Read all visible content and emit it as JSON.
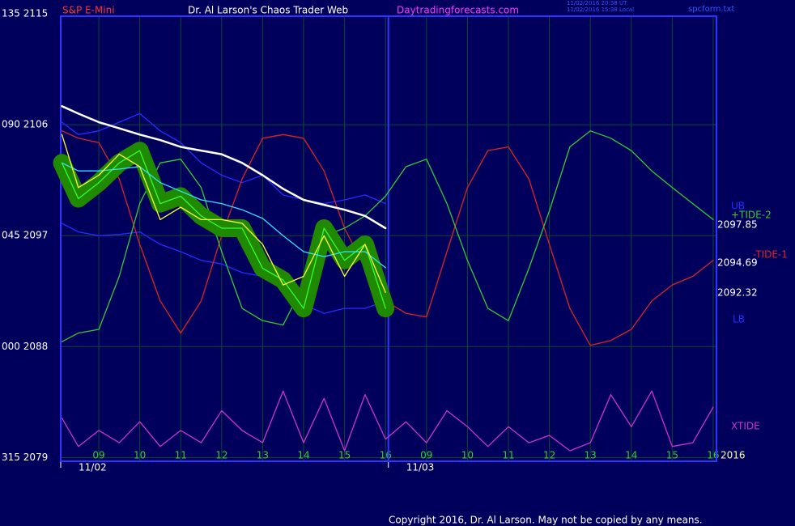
{
  "instrument": "S&P E-Mini",
  "title": "Dr. Al Larson's Chaos Trader Web",
  "website": "Daytradingforecasts.com",
  "timestamps": [
    "11/02/2016 20:38 UT",
    "11/02/2016 15:38 Local"
  ],
  "filename": "spcform.txt",
  "copyright": "Copyright 2016, Dr. Al Larson. May not be copied by any means.",
  "chart_data": {
    "type": "line",
    "grid": true,
    "x": [
      -0.9,
      -0.5,
      0,
      0.5,
      1,
      1.5,
      2,
      2.5,
      3,
      3.5,
      4,
      4.5,
      5,
      5.5,
      6,
      6.5,
      7,
      7.5,
      8,
      8.5,
      9,
      9.5,
      10,
      10.5,
      11,
      11.5,
      12,
      12.5,
      13,
      13.5,
      14,
      14.5,
      15
    ],
    "xlim": [
      -0.93,
      15.08
    ],
    "xticks": [
      {
        "value": 0,
        "label": "09"
      },
      {
        "value": 1,
        "label": "10"
      },
      {
        "value": 2,
        "label": "11"
      },
      {
        "value": 3,
        "label": "12"
      },
      {
        "value": 4,
        "label": "13"
      },
      {
        "value": 5,
        "label": "14"
      },
      {
        "value": 6,
        "label": "15"
      },
      {
        "value": 7,
        "label": "16"
      },
      {
        "value": 8,
        "label": "09"
      },
      {
        "value": 9,
        "label": "10"
      },
      {
        "value": 10,
        "label": "11"
      },
      {
        "value": 11,
        "label": "12"
      },
      {
        "value": 12,
        "label": "13"
      },
      {
        "value": 13,
        "label": "14"
      },
      {
        "value": 14,
        "label": "15"
      },
      {
        "value": 15,
        "label": "16"
      }
    ],
    "dates": [
      {
        "value": -0.93,
        "label": "11/02"
      },
      {
        "value": 7.07,
        "label": "11/03"
      }
    ],
    "ylim": [
      2078.7,
      2114.8
    ],
    "yticks": [
      {
        "value": 2079,
        "label": "315 2079"
      },
      {
        "value": 2088,
        "label": "000 2088"
      },
      {
        "value": 2097,
        "label": "045 2097"
      },
      {
        "value": 2106,
        "label": "090 2106"
      },
      {
        "value": 2115,
        "label": "135 2115"
      }
    ],
    "right_labels": [
      "2097.85",
      "2094.69",
      "2092.32",
      "2016"
    ],
    "series": [
      {
        "name": "UB",
        "color": "#2a2aff",
        "values": [
          2106.2,
          2105.2,
          2105.5,
          2106.2,
          2106.9,
          2105.5,
          2104.55,
          2102.9,
          2101.9,
          2101.3,
          2101.9,
          2100.3,
          2099.9,
          2099.6,
          2099.9,
          2100.3,
          2099.6,
          null,
          null,
          null,
          null,
          null,
          null,
          null,
          null,
          null,
          null,
          null,
          null,
          null,
          null,
          null,
          null
        ]
      },
      {
        "name": "LB",
        "color": "#2a2aff",
        "values": [
          2098.0,
          2097.3,
          2097.0,
          2097.1,
          2097.3,
          2096.3,
          2095.7,
          2095.0,
          2094.7,
          2094.0,
          2093.7,
          2092.7,
          2091.4,
          2090.7,
          2091.1,
          2091.1,
          2091.7,
          null,
          null,
          null,
          null,
          null,
          null,
          null,
          null,
          null,
          null,
          null,
          null,
          null,
          null,
          null,
          null
        ]
      },
      {
        "name": "-TIDE-1",
        "color": "#dd2222",
        "values": [
          2105.5,
          2104.9,
          2104.55,
          2101.6,
          2096.3,
          2091.7,
          2089.1,
          2091.7,
          2097.0,
          2101.6,
          2104.9,
          2105.2,
          2104.9,
          2102.25,
          2097.6,
          2094.35,
          2091.7,
          2090.7,
          2090.4,
          2095.7,
          2100.9,
          2103.9,
          2104.2,
          2101.6,
          2096.3,
          2091.1,
          2088.1,
          2088.5,
          2089.4,
          2091.7,
          2093.0,
          2093.7,
          2095.0
        ]
      },
      {
        "name": "+TIDE-2",
        "color": "#33cc33",
        "values": [
          2088.4,
          2089.1,
          2089.4,
          2093.7,
          2099.6,
          2102.9,
          2103.2,
          2100.9,
          2095.7,
          2091.1,
          2090.1,
          2089.75,
          2093.0,
          2097.0,
          2097.6,
          2098.6,
          2100.2,
          2102.6,
          2103.2,
          2099.6,
          2095.0,
          2091.1,
          2090.1,
          2094.35,
          2099.0,
          2104.2,
          2105.5,
          2104.9,
          2103.9,
          2102.25,
          2100.9,
          2099.6,
          2098.3
        ]
      },
      {
        "name": "XTIDE",
        "color": "#cc33cc",
        "values": [
          2082.2,
          2079.9,
          2081.2,
          2080.2,
          2081.9,
          2079.9,
          2081.2,
          2080.2,
          2082.8,
          2081.2,
          2080.2,
          2084.4,
          2080.2,
          2083.8,
          2079.55,
          2084.1,
          2080.5,
          2081.9,
          2080.2,
          2082.8,
          2081.5,
          2079.9,
          2081.5,
          2080.2,
          2080.8,
          2079.55,
          2080.2,
          2084.1,
          2081.5,
          2084.4,
          2079.9,
          2080.2,
          2083.1
        ]
      },
      {
        "color": "#ffffff",
        "values": [
          2107.5,
          2106.9,
          2106.2,
          2105.7,
          2105.2,
          2104.75,
          2104.2,
          2103.9,
          2103.6,
          2102.9,
          2101.9,
          2100.8,
          2099.9,
          2099.5,
          2099.1,
          2098.6,
          2097.6,
          null,
          null,
          null,
          null,
          null,
          null,
          null,
          null,
          null,
          null,
          null,
          null,
          null,
          null,
          null,
          null
        ]
      },
      {
        "color": "#33ff33",
        "halo": "#1f8a00",
        "values": [
          2102.9,
          2100.0,
          2101.3,
          2102.9,
          2103.9,
          2099.6,
          2100.2,
          2098.6,
          2097.6,
          2097.6,
          2094.35,
          2093.4,
          2091.1,
          2097.6,
          2095.0,
          2096.3,
          2091.1,
          null,
          null,
          null,
          null,
          null,
          null,
          null,
          null,
          null,
          null,
          null,
          null,
          null,
          null,
          null,
          null
        ]
      },
      {
        "color": "#33e0ff",
        "values": [
          2102.9,
          2102.25,
          2102.25,
          2102.4,
          2102.6,
          2101.3,
          2100.6,
          2099.9,
          2099.6,
          2099.1,
          2098.4,
          2097.0,
          2095.7,
          2095.3,
          2095.7,
          2095.7,
          2094.4,
          null,
          null,
          null,
          null,
          null,
          null,
          null,
          null,
          null,
          null,
          null,
          null,
          null,
          null,
          null,
          null
        ]
      },
      {
        "color": "#ffff33",
        "values": [
          2105.2,
          2100.9,
          2101.9,
          2103.6,
          2102.6,
          2098.3,
          2099.3,
          2098.3,
          2098.3,
          2098.0,
          2096.3,
          2093.0,
          2093.7,
          2097.0,
          2093.7,
          2096.3,
          2092.4,
          null,
          null,
          null,
          null,
          null,
          null,
          null,
          null,
          null,
          null,
          null,
          null,
          null,
          null,
          null,
          null
        ]
      }
    ]
  }
}
